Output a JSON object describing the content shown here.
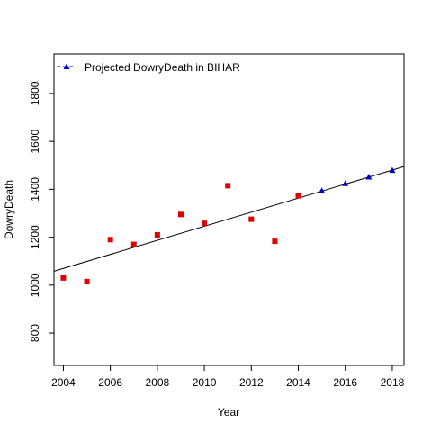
{
  "chart_data": {
    "type": "scatter",
    "xlabel": "Year",
    "ylabel": "DowryDeath",
    "xlim": [
      2003.6,
      2018.5
    ],
    "ylim": [
      665,
      1965
    ],
    "x_ticks": [
      2004,
      2006,
      2008,
      2010,
      2012,
      2014,
      2016,
      2018
    ],
    "y_ticks": [
      800,
      1000,
      1200,
      1400,
      1600,
      1800
    ],
    "series": [
      {
        "marker": "square",
        "color": "#e00000",
        "x": [
          2004,
          2005,
          2006,
          2007,
          2008,
          2009,
          2010,
          2011,
          2012,
          2013,
          2014
        ],
        "y": [
          1030,
          1015,
          1190,
          1170,
          1210,
          1295,
          1258,
          1415,
          1275,
          1183,
          1373
        ]
      },
      {
        "name": "Projected DowryDeath in BIHAR",
        "marker": "triangle",
        "color": "#0000cc",
        "x": [
          2015,
          2016,
          2017,
          2018
        ],
        "y": [
          1395,
          1425,
          1452,
          1480
        ]
      }
    ],
    "trend_line": {
      "x": [
        2003.6,
        2018.5
      ],
      "y": [
        1058,
        1495
      ],
      "color": "#000000"
    },
    "legend": {
      "position": "top-left",
      "label": "Projected DowryDeath in BIHAR"
    }
  }
}
